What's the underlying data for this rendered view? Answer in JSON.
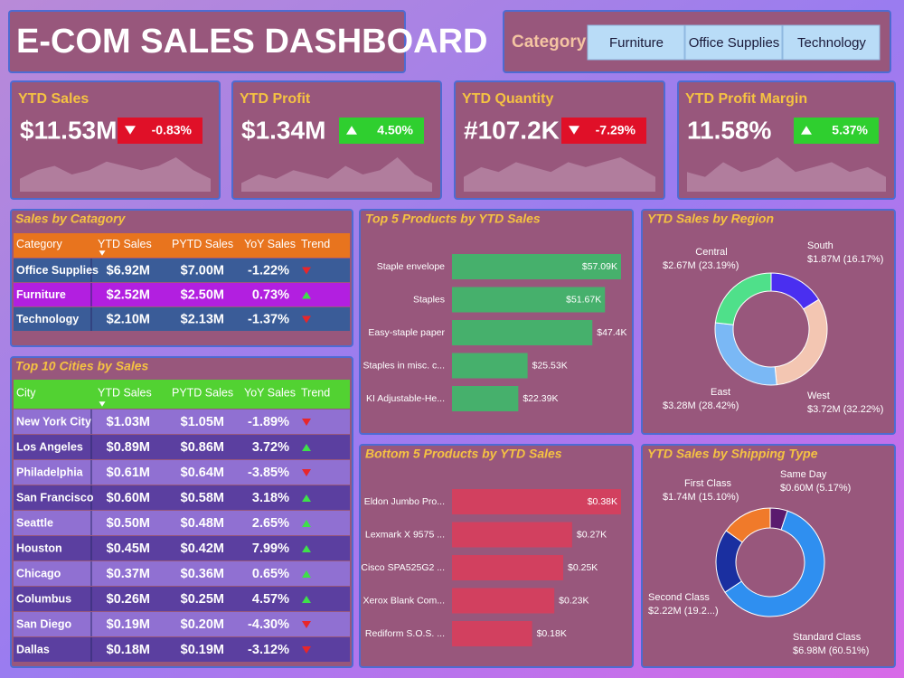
{
  "header": {
    "title": "E-COM SALES DASHBOARD"
  },
  "slicer": {
    "label": "Category",
    "options": [
      "Furniture",
      "Office Supplies",
      "Technology"
    ]
  },
  "kpis": [
    {
      "title": "YTD Sales",
      "value": "$11.53M",
      "change": "-0.83%",
      "direction": "down",
      "trend": [
        3,
        5,
        6,
        4,
        5,
        7,
        6,
        5,
        6,
        8,
        5,
        3
      ]
    },
    {
      "title": "YTD Profit",
      "value": "$1.34M",
      "change": "4.50%",
      "direction": "up",
      "trend": [
        2,
        4,
        3,
        5,
        4,
        3,
        6,
        4,
        5,
        8,
        4,
        2
      ]
    },
    {
      "title": "YTD Quantity",
      "value": "#107.2K",
      "change": "-7.29%",
      "direction": "down",
      "trend": [
        3,
        5,
        4,
        6,
        5,
        4,
        6,
        5,
        6,
        7,
        5,
        3
      ]
    },
    {
      "title": "YTD Profit Margin",
      "value": "11.58%",
      "change": "5.37%",
      "direction": "up",
      "trend": [
        4,
        3,
        6,
        4,
        5,
        7,
        4,
        5,
        6,
        4,
        5,
        3
      ]
    }
  ],
  "sales_by_category": {
    "title": "Sales by Catagory",
    "columns": [
      "Category",
      "YTD Sales",
      "PYTD Sales",
      "YoY Sales",
      "Trend"
    ],
    "rows": [
      {
        "cells": [
          "Office Supplies",
          "$6.92M",
          "$7.00M",
          "-1.22%"
        ],
        "trend": "down",
        "color": "#3a5c98"
      },
      {
        "cells": [
          "Furniture",
          "$2.52M",
          "$2.50M",
          "0.73%"
        ],
        "trend": "up",
        "color": "#b21fe0"
      },
      {
        "cells": [
          "Technology",
          "$2.10M",
          "$2.13M",
          "-1.37%"
        ],
        "trend": "down",
        "color": "#3a5c98"
      }
    ]
  },
  "top_cities": {
    "title": "Top 10 Cities by Sales",
    "columns": [
      "City",
      "YTD Sales",
      "PYTD Sales",
      "YoY Sales",
      "Trend"
    ],
    "rows": [
      {
        "cells": [
          "New York City",
          "$1.03M",
          "$1.05M",
          "-1.89%"
        ],
        "trend": "down"
      },
      {
        "cells": [
          "Los Angeles",
          "$0.89M",
          "$0.86M",
          "3.72%"
        ],
        "trend": "up"
      },
      {
        "cells": [
          "Philadelphia",
          "$0.61M",
          "$0.64M",
          "-3.85%"
        ],
        "trend": "down"
      },
      {
        "cells": [
          "San Francisco",
          "$0.60M",
          "$0.58M",
          "3.18%"
        ],
        "trend": "up"
      },
      {
        "cells": [
          "Seattle",
          "$0.50M",
          "$0.48M",
          "2.65%"
        ],
        "trend": "up"
      },
      {
        "cells": [
          "Houston",
          "$0.45M",
          "$0.42M",
          "7.99%"
        ],
        "trend": "up"
      },
      {
        "cells": [
          "Chicago",
          "$0.37M",
          "$0.36M",
          "0.65%"
        ],
        "trend": "up"
      },
      {
        "cells": [
          "Columbus",
          "$0.26M",
          "$0.25M",
          "4.57%"
        ],
        "trend": "up"
      },
      {
        "cells": [
          "San Diego",
          "$0.19M",
          "$0.20M",
          "-4.30%"
        ],
        "trend": "down"
      },
      {
        "cells": [
          "Dallas",
          "$0.18M",
          "$0.19M",
          "-3.12%"
        ],
        "trend": "down"
      }
    ]
  },
  "chart_data": [
    {
      "type": "bar",
      "title": "Top 5 Products by YTD Sales",
      "categories": [
        "Staple envelope",
        "Staples",
        "Easy-staple paper",
        "Staples in misc. c...",
        "KI Adjustable-He..."
      ],
      "values": [
        57.09,
        51.67,
        47.4,
        25.53,
        22.39
      ],
      "value_labels": [
        "$57.09K",
        "$51.67K",
        "$47.4K",
        "$25.53K",
        "$22.39K"
      ],
      "color": "#46b06c"
    },
    {
      "type": "bar",
      "title": "Bottom 5 Products by YTD Sales",
      "categories": [
        "Eldon Jumbo Pro...",
        "Lexmark X 9575 ...",
        "Cisco SPA525G2 ...",
        "Xerox Blank Com...",
        "Rediform S.O.S. ..."
      ],
      "values": [
        0.38,
        0.27,
        0.25,
        0.23,
        0.18
      ],
      "value_labels": [
        "$0.38K",
        "$0.27K",
        "$0.25K",
        "$0.23K",
        "$0.18K"
      ],
      "color": "#d2405f"
    },
    {
      "type": "pie",
      "title": "YTD Sales by Region",
      "categories": [
        "South",
        "West",
        "East",
        "Central"
      ],
      "values": [
        16.17,
        32.22,
        28.42,
        23.19
      ],
      "value_labels": [
        "$1.87M (16.17%)",
        "$3.72M (32.22%)",
        "$3.28M (28.42%)",
        "$2.67M (23.19%)"
      ],
      "colors": [
        "#4a2ff0",
        "#f3c6b2",
        "#7ab8f5",
        "#4fe08a"
      ]
    },
    {
      "type": "pie",
      "title": "YTD Sales by Shipping Type",
      "categories": [
        "Same Day",
        "Standard Class",
        "Second Class",
        "First Class"
      ],
      "values": [
        5.17,
        60.51,
        19.22,
        15.1
      ],
      "value_labels": [
        "$0.60M (5.17%)",
        "$6.98M (60.51%)",
        "$2.22M (19.2...)",
        "$1.74M (15.10%)"
      ],
      "colors": [
        "#5a1a6e",
        "#2f8ff0",
        "#1a2fa0",
        "#f07a2a"
      ]
    }
  ]
}
